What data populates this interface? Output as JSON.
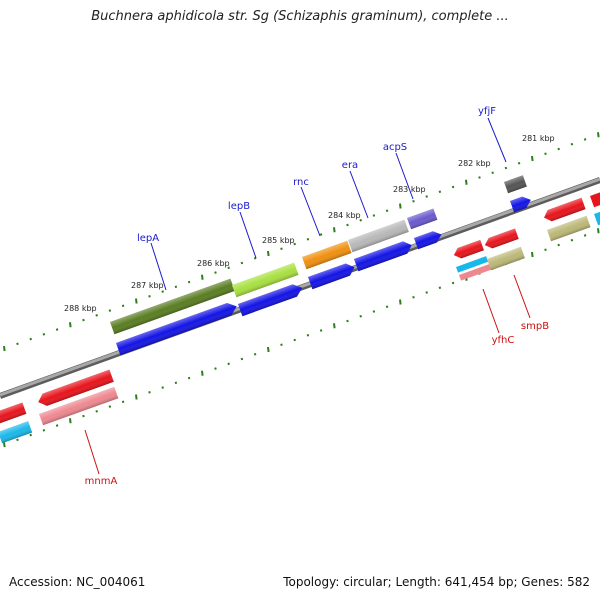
{
  "title": "Buchnera aphidicola str. Sg (Schizaphis graminum), complete ...",
  "footer": {
    "accession_label": "Accession:",
    "accession_value": "NC_004061",
    "topology_label": "Topology:",
    "topology_value": "circular",
    "length_label": "Length:",
    "length_value": "641,454 bp",
    "genes_label": "Genes:",
    "genes_value": "582"
  },
  "scale_labels": [
    "288 kbp",
    "287 kbp",
    "286 kbp",
    "285 kbp",
    "284 kbp",
    "283 kbp",
    "282 kbp",
    "281 kbp"
  ],
  "gene_labels_top": [
    "lepA",
    "lepB",
    "rnc",
    "era",
    "acpS",
    "yfjF"
  ],
  "gene_labels_bottom": [
    "mnmA",
    "yfhC",
    "smpB"
  ],
  "colors": {
    "backbone": "#8c8c8c",
    "tick": "#2f7d1c",
    "label_top": "#1a1acc",
    "label_bottom": "#cc1111",
    "red": "#e8141c",
    "blue": "#1414e6",
    "cyan": "#1ab8ea",
    "pink": "#ee8890",
    "olive_dark": "#5a7d22",
    "lime": "#a8e040",
    "orange": "#f09010",
    "grey_light": "#b8b8b8",
    "purple": "#6a5acd",
    "khaki": "#bcb878",
    "dark_grey": "#555555"
  }
}
